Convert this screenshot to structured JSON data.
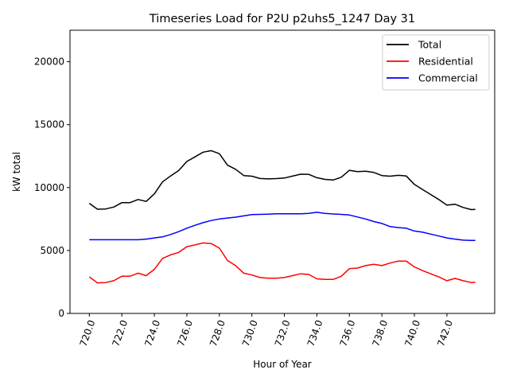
{
  "chart_data": {
    "type": "line",
    "title": "Timeseries Load for P2U p2uhs5_1247  Day 31",
    "xlabel": "Hour of Year",
    "ylabel": "kW total",
    "xlim": [
      718.81,
      744.94
    ],
    "ylim": [
      0,
      22500
    ],
    "xticks": [
      720,
      722,
      724,
      726,
      728,
      730,
      732,
      734,
      736,
      738,
      740,
      742
    ],
    "xtick_labels": [
      "720.0",
      "722.0",
      "724.0",
      "726.0",
      "728.0",
      "730.0",
      "732.0",
      "734.0",
      "736.0",
      "738.0",
      "740.0",
      "742.0"
    ],
    "yticks": [
      0,
      5000,
      10000,
      15000,
      20000
    ],
    "ytick_labels": [
      "0",
      "5000",
      "10000",
      "15000",
      "20000"
    ],
    "grid": false,
    "legend_position": "top-right",
    "x": [
      720,
      720.5,
      721,
      721.5,
      722,
      722.5,
      723,
      723.5,
      724,
      724.5,
      725,
      725.5,
      726,
      726.5,
      727,
      727.5,
      728,
      728.5,
      729,
      729.5,
      730,
      730.5,
      731,
      731.5,
      732,
      732.5,
      733,
      733.5,
      734,
      734.5,
      735,
      735.5,
      736,
      736.5,
      737,
      737.5,
      738,
      738.5,
      739,
      739.5,
      740,
      740.5,
      741,
      741.5,
      742,
      742.5,
      743,
      743.5,
      743.75
    ],
    "series": [
      {
        "name": "Total",
        "color": "#000000",
        "values": [
          8750,
          8280,
          8300,
          8450,
          8800,
          8800,
          9050,
          8900,
          9500,
          10450,
          10920,
          11350,
          12070,
          12440,
          12810,
          12930,
          12690,
          11780,
          11450,
          10950,
          10900,
          10720,
          10690,
          10710,
          10760,
          10910,
          11060,
          11050,
          10780,
          10650,
          10600,
          10820,
          11370,
          11260,
          11300,
          11200,
          10950,
          10900,
          10970,
          10920,
          10250,
          9850,
          9450,
          9050,
          8600,
          8680,
          8420,
          8250,
          8270
        ]
      },
      {
        "name": "Residential",
        "color": "#ff0000",
        "values": [
          2900,
          2430,
          2450,
          2600,
          2950,
          2950,
          3200,
          3000,
          3500,
          4370,
          4650,
          4850,
          5300,
          5440,
          5600,
          5550,
          5190,
          4200,
          3800,
          3200,
          3050,
          2850,
          2800,
          2800,
          2850,
          3000,
          3150,
          3100,
          2750,
          2700,
          2700,
          2950,
          3550,
          3600,
          3800,
          3900,
          3800,
          4000,
          4150,
          4150,
          3700,
          3400,
          3150,
          2900,
          2600,
          2780,
          2600,
          2450,
          2470
        ]
      },
      {
        "name": "Commercial",
        "color": "#0000ff",
        "values": [
          5850,
          5850,
          5850,
          5850,
          5850,
          5850,
          5850,
          5900,
          6000,
          6080,
          6270,
          6500,
          6770,
          7000,
          7210,
          7380,
          7500,
          7580,
          7650,
          7750,
          7850,
          7870,
          7890,
          7910,
          7910,
          7910,
          7910,
          7950,
          8030,
          7950,
          7900,
          7870,
          7820,
          7660,
          7500,
          7300,
          7150,
          6900,
          6820,
          6770,
          6550,
          6450,
          6300,
          6150,
          6000,
          5900,
          5820,
          5800,
          5800
        ]
      }
    ]
  }
}
